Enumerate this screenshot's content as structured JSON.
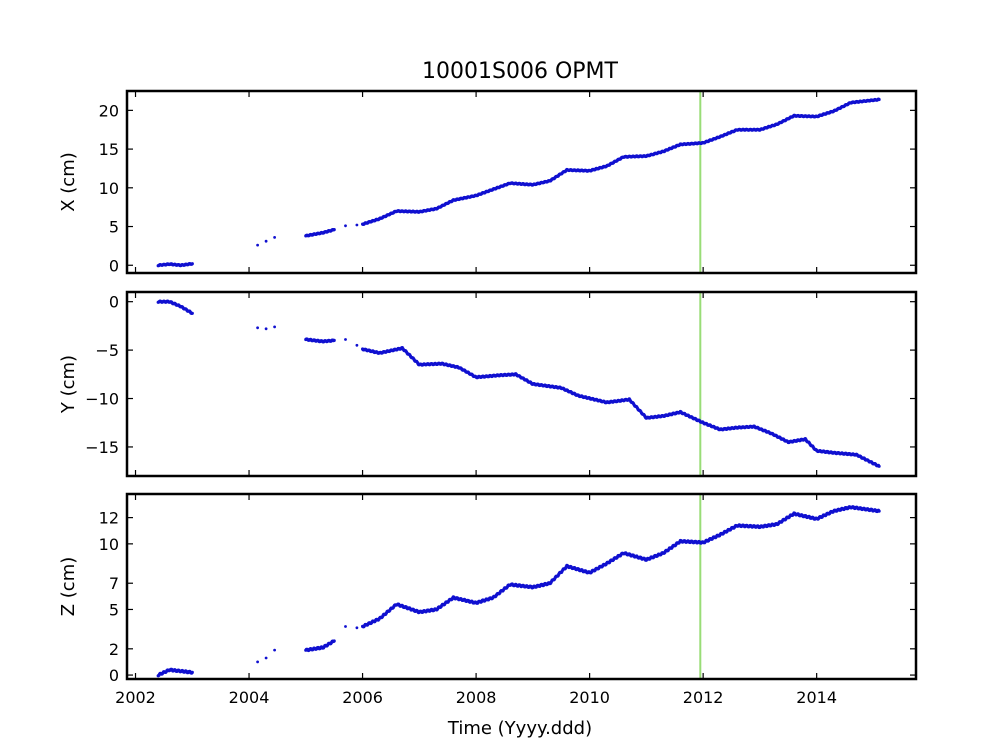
{
  "chart_data": {
    "type": "scatter",
    "title": "10001S006 OPMT",
    "xlabel": "Time (Yyyy.ddd)",
    "xlim": [
      2001.85,
      2015.75
    ],
    "x_ticks": [
      2002,
      2004,
      2006,
      2008,
      2010,
      2012,
      2014
    ],
    "x_tick_labels": [
      "2002",
      "2004",
      "2006",
      "2008",
      "2010",
      "2012",
      "2014"
    ],
    "vertical_line": {
      "x": 2011.95,
      "color": "#99dd77"
    },
    "marker_color": "#1010d0",
    "panels": [
      {
        "id": "x",
        "ylabel": "X (cm)",
        "ylim": [
          -1,
          22.5
        ],
        "y_ticks": [
          0,
          5,
          10,
          15,
          20
        ],
        "y_tick_labels": [
          "0",
          "5",
          "10",
          "15",
          "20"
        ],
        "series": [
          {
            "segments": [
              {
                "kind": "dense",
                "points": [
                  [
                    2002.4,
                    0.0
                  ],
                  [
                    2002.6,
                    0.15
                  ],
                  [
                    2002.8,
                    0.0
                  ],
                  [
                    2003.0,
                    0.2
                  ]
                ]
              },
              {
                "kind": "sparse",
                "points": [
                  [
                    2004.15,
                    2.6
                  ],
                  [
                    2004.3,
                    3.1
                  ],
                  [
                    2004.45,
                    3.6
                  ]
                ]
              },
              {
                "kind": "dense",
                "points": [
                  [
                    2005.0,
                    3.8
                  ],
                  [
                    2005.3,
                    4.2
                  ],
                  [
                    2005.5,
                    4.6
                  ]
                ]
              },
              {
                "kind": "sparse",
                "points": [
                  [
                    2005.7,
                    5.1
                  ],
                  [
                    2005.9,
                    5.2
                  ]
                ]
              },
              {
                "kind": "dense",
                "points": [
                  [
                    2006.0,
                    5.3
                  ],
                  [
                    2006.3,
                    6.0
                  ],
                  [
                    2006.6,
                    7.0
                  ],
                  [
                    2007.0,
                    6.9
                  ],
                  [
                    2007.3,
                    7.3
                  ],
                  [
                    2007.6,
                    8.4
                  ],
                  [
                    2008.0,
                    9.0
                  ],
                  [
                    2008.3,
                    9.8
                  ],
                  [
                    2008.6,
                    10.6
                  ],
                  [
                    2009.0,
                    10.4
                  ],
                  [
                    2009.3,
                    10.9
                  ],
                  [
                    2009.6,
                    12.3
                  ],
                  [
                    2010.0,
                    12.2
                  ],
                  [
                    2010.3,
                    12.8
                  ],
                  [
                    2010.6,
                    14.0
                  ],
                  [
                    2011.0,
                    14.1
                  ],
                  [
                    2011.3,
                    14.7
                  ],
                  [
                    2011.6,
                    15.6
                  ],
                  [
                    2012.0,
                    15.8
                  ],
                  [
                    2012.3,
                    16.6
                  ],
                  [
                    2012.6,
                    17.5
                  ],
                  [
                    2013.0,
                    17.5
                  ],
                  [
                    2013.3,
                    18.2
                  ],
                  [
                    2013.6,
                    19.3
                  ],
                  [
                    2014.0,
                    19.2
                  ],
                  [
                    2014.3,
                    19.9
                  ],
                  [
                    2014.6,
                    21.0
                  ],
                  [
                    2015.1,
                    21.4
                  ]
                ]
              }
            ]
          }
        ]
      },
      {
        "id": "y",
        "ylabel": "Y (cm)",
        "ylim": [
          -18,
          1
        ],
        "y_ticks": [
          0,
          -5,
          -10,
          -15
        ],
        "y_tick_labels": [
          "0",
          "−5",
          "−10",
          "−15"
        ],
        "series": [
          {
            "segments": [
              {
                "kind": "dense",
                "points": [
                  [
                    2002.4,
                    0.0
                  ],
                  [
                    2002.6,
                    0.0
                  ],
                  [
                    2002.8,
                    -0.5
                  ],
                  [
                    2003.0,
                    -1.2
                  ]
                ]
              },
              {
                "kind": "sparse",
                "points": [
                  [
                    2004.15,
                    -2.7
                  ],
                  [
                    2004.3,
                    -2.8
                  ],
                  [
                    2004.45,
                    -2.6
                  ]
                ]
              },
              {
                "kind": "dense",
                "points": [
                  [
                    2005.0,
                    -3.9
                  ],
                  [
                    2005.3,
                    -4.1
                  ],
                  [
                    2005.5,
                    -4.0
                  ]
                ]
              },
              {
                "kind": "sparse",
                "points": [
                  [
                    2005.7,
                    -3.9
                  ],
                  [
                    2005.9,
                    -4.5
                  ]
                ]
              },
              {
                "kind": "dense",
                "points": [
                  [
                    2006.0,
                    -4.9
                  ],
                  [
                    2006.3,
                    -5.3
                  ],
                  [
                    2006.7,
                    -4.8
                  ],
                  [
                    2007.0,
                    -6.5
                  ],
                  [
                    2007.4,
                    -6.4
                  ],
                  [
                    2007.7,
                    -6.8
                  ],
                  [
                    2008.0,
                    -7.8
                  ],
                  [
                    2008.4,
                    -7.6
                  ],
                  [
                    2008.7,
                    -7.5
                  ],
                  [
                    2009.0,
                    -8.5
                  ],
                  [
                    2009.5,
                    -8.9
                  ],
                  [
                    2009.8,
                    -9.7
                  ],
                  [
                    2010.3,
                    -10.4
                  ],
                  [
                    2010.7,
                    -10.1
                  ],
                  [
                    2011.0,
                    -12.0
                  ],
                  [
                    2011.3,
                    -11.8
                  ],
                  [
                    2011.6,
                    -11.4
                  ],
                  [
                    2012.0,
                    -12.5
                  ],
                  [
                    2012.3,
                    -13.2
                  ],
                  [
                    2012.6,
                    -13.0
                  ],
                  [
                    2012.9,
                    -12.9
                  ],
                  [
                    2013.2,
                    -13.6
                  ],
                  [
                    2013.5,
                    -14.5
                  ],
                  [
                    2013.8,
                    -14.2
                  ],
                  [
                    2014.0,
                    -15.4
                  ],
                  [
                    2014.3,
                    -15.6
                  ],
                  [
                    2014.7,
                    -15.8
                  ],
                  [
                    2015.1,
                    -17.0
                  ]
                ]
              }
            ]
          }
        ]
      },
      {
        "id": "z",
        "ylabel": "Z (cm)",
        "ylim": [
          -0.3,
          13.8
        ],
        "y_ticks": [
          0,
          2,
          5,
          7,
          10,
          12
        ],
        "y_tick_labels": [
          "0",
          "2",
          "5",
          "7",
          "10",
          "12"
        ],
        "series": [
          {
            "segments": [
              {
                "kind": "dense",
                "points": [
                  [
                    2002.4,
                    0.0
                  ],
                  [
                    2002.6,
                    0.4
                  ],
                  [
                    2002.8,
                    0.3
                  ],
                  [
                    2003.0,
                    0.2
                  ]
                ]
              },
              {
                "kind": "sparse",
                "points": [
                  [
                    2004.15,
                    1.0
                  ],
                  [
                    2004.3,
                    1.3
                  ],
                  [
                    2004.45,
                    1.9
                  ]
                ]
              },
              {
                "kind": "dense",
                "points": [
                  [
                    2005.0,
                    1.9
                  ],
                  [
                    2005.3,
                    2.1
                  ],
                  [
                    2005.5,
                    2.6
                  ]
                ]
              },
              {
                "kind": "sparse",
                "points": [
                  [
                    2005.7,
                    3.7
                  ],
                  [
                    2005.9,
                    3.6
                  ]
                ]
              },
              {
                "kind": "dense",
                "points": [
                  [
                    2006.0,
                    3.7
                  ],
                  [
                    2006.3,
                    4.3
                  ],
                  [
                    2006.6,
                    5.4
                  ],
                  [
                    2007.0,
                    4.8
                  ],
                  [
                    2007.3,
                    5.0
                  ],
                  [
                    2007.6,
                    5.9
                  ],
                  [
                    2008.0,
                    5.5
                  ],
                  [
                    2008.3,
                    5.9
                  ],
                  [
                    2008.6,
                    6.9
                  ],
                  [
                    2009.0,
                    6.7
                  ],
                  [
                    2009.3,
                    7.0
                  ],
                  [
                    2009.6,
                    8.3
                  ],
                  [
                    2010.0,
                    7.8
                  ],
                  [
                    2010.3,
                    8.5
                  ],
                  [
                    2010.6,
                    9.3
                  ],
                  [
                    2011.0,
                    8.8
                  ],
                  [
                    2011.3,
                    9.3
                  ],
                  [
                    2011.6,
                    10.2
                  ],
                  [
                    2012.0,
                    10.1
                  ],
                  [
                    2012.3,
                    10.7
                  ],
                  [
                    2012.6,
                    11.4
                  ],
                  [
                    2013.0,
                    11.3
                  ],
                  [
                    2013.3,
                    11.5
                  ],
                  [
                    2013.6,
                    12.3
                  ],
                  [
                    2014.0,
                    11.9
                  ],
                  [
                    2014.3,
                    12.5
                  ],
                  [
                    2014.6,
                    12.8
                  ],
                  [
                    2015.1,
                    12.5
                  ]
                ]
              }
            ]
          }
        ]
      }
    ]
  }
}
